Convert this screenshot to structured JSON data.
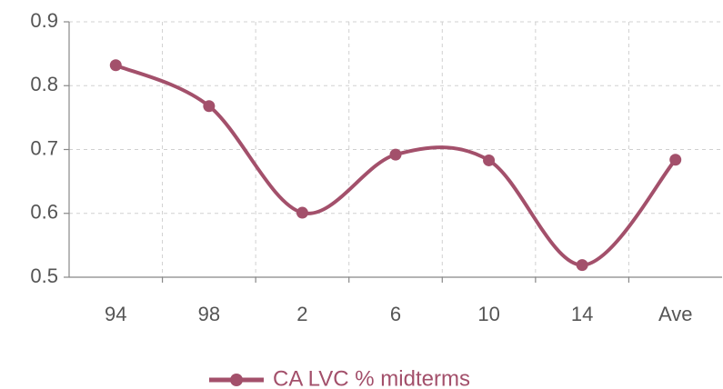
{
  "chart_data": {
    "type": "line",
    "categories": [
      "94",
      "98",
      "2",
      "6",
      "10",
      "14",
      "Ave"
    ],
    "series": [
      {
        "name": "CA LVC % midterms",
        "color": "#a3506b",
        "values": [
          0.832,
          0.768,
          0.601,
          0.692,
          0.683,
          0.519,
          0.684
        ]
      }
    ],
    "ylim": [
      0.5,
      0.9
    ],
    "yticks": [
      0.5,
      0.6,
      0.7,
      0.8,
      0.9
    ],
    "grid": true,
    "legend": "bottom",
    "smooth": true
  }
}
